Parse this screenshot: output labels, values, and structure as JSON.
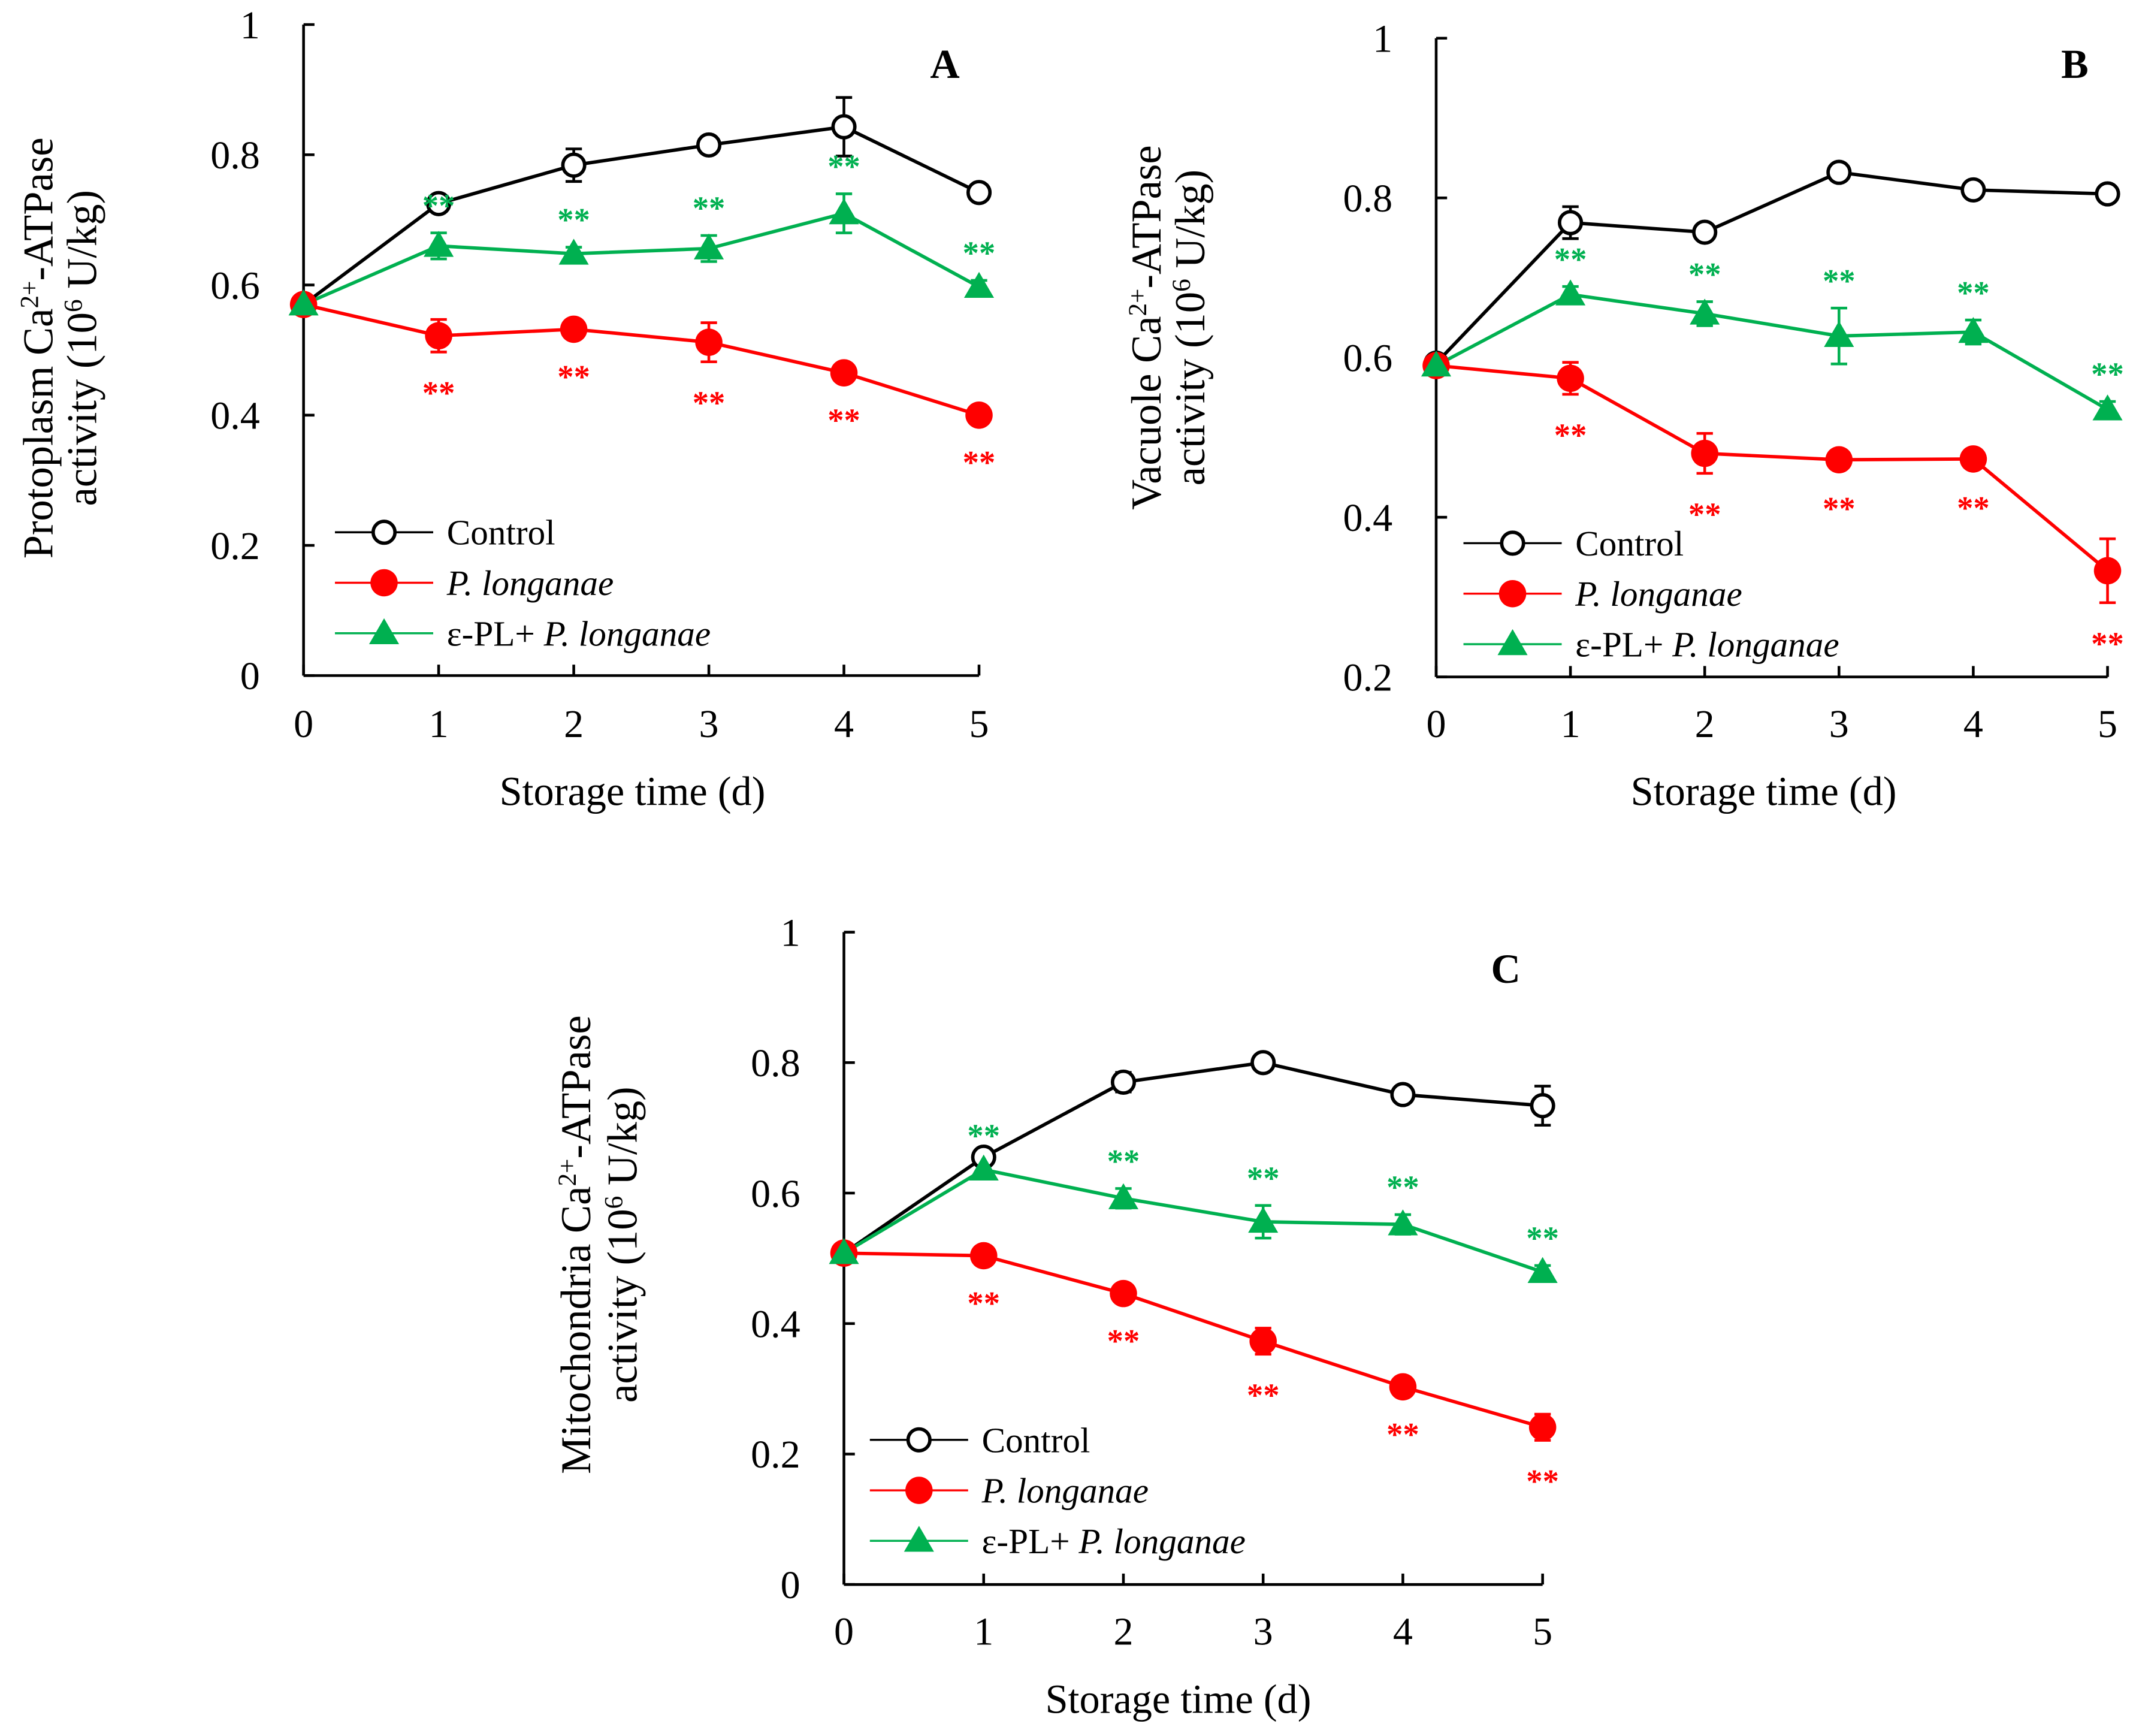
{
  "colors": {
    "Control": "#000000",
    "P. longanae": "#ff0000",
    "e-PL": "#00b050"
  },
  "legend": [
    {
      "pre": "",
      "ital": "",
      "label": "Control"
    },
    {
      "pre": "",
      "ital": "P. longanae"
    },
    {
      "pre": "ε-PL+ ",
      "ital": "P. longanae"
    }
  ],
  "chart_data": [
    {
      "type": "line",
      "panel": "A",
      "xlabel": "Storage time (d)",
      "ylabel": [
        "Protoplasm Ca",
        "2+",
        "-ATPase",
        "activity (10",
        "6",
        " U/kg)"
      ],
      "x": [
        0,
        1,
        2,
        3,
        4,
        5
      ],
      "ylim": [
        0,
        1
      ],
      "yticks": [
        "0",
        "0.2",
        "0.4",
        "0.6",
        "0.8",
        "1"
      ],
      "ytickvals": [
        0,
        0.2,
        0.4,
        0.6,
        0.8,
        1
      ],
      "series": [
        {
          "name": "Control",
          "marker": "open-circle",
          "values": [
            0.57,
            0.725,
            0.784,
            0.815,
            0.843,
            0.742
          ],
          "errors": [
            0.01,
            0.01,
            0.025,
            0.01,
            0.045,
            0.01
          ]
        },
        {
          "name": "P. longanae",
          "marker": "filled-circle",
          "values": [
            0.57,
            0.522,
            0.532,
            0.512,
            0.465,
            0.4
          ],
          "errors": [
            0.01,
            0.025,
            0.01,
            0.03,
            0.01,
            0.01
          ]
        },
        {
          "name": "ε-PL+ P. longanae",
          "marker": "triangle",
          "values": [
            0.57,
            0.66,
            0.648,
            0.656,
            0.71,
            0.597
          ],
          "errors": [
            0.01,
            0.02,
            0.01,
            0.02,
            0.03,
            0.01
          ]
        }
      ],
      "significance": {
        "P. longanae": [
          1,
          2,
          3,
          4,
          5
        ],
        "ε-PL+ P. longanae": [
          1,
          2,
          3,
          4,
          5
        ],
        "mark": "**"
      }
    },
    {
      "type": "line",
      "panel": "B",
      "xlabel": "Storage time (d)",
      "ylabel": [
        "Vacuole Ca",
        "2+",
        "-ATPase",
        "activity (10",
        "6",
        " U/kg)"
      ],
      "x": [
        0,
        1,
        2,
        3,
        4,
        5
      ],
      "ylim": [
        0.2,
        1
      ],
      "yticks": [
        "0.2",
        "0.4",
        "0.6",
        "0.8",
        "1"
      ],
      "ytickvals": [
        0.2,
        0.4,
        0.6,
        0.8,
        1
      ],
      "series": [
        {
          "name": "Control",
          "marker": "open-circle",
          "values": [
            0.593,
            0.769,
            0.757,
            0.832,
            0.81,
            0.805
          ],
          "errors": [
            0.01,
            0.02,
            0.01,
            0.01,
            0.01,
            0.01
          ]
        },
        {
          "name": "P. longanae",
          "marker": "filled-circle",
          "values": [
            0.59,
            0.574,
            0.48,
            0.472,
            0.473,
            0.333
          ],
          "errors": [
            0.01,
            0.02,
            0.025,
            0.01,
            0.01,
            0.04
          ]
        },
        {
          "name": "ε-PL+ P. longanae",
          "marker": "triangle",
          "values": [
            0.59,
            0.679,
            0.655,
            0.627,
            0.632,
            0.535
          ],
          "errors": [
            0.01,
            0.01,
            0.015,
            0.035,
            0.015,
            0.01
          ]
        }
      ],
      "significance": {
        "P. longanae": [
          1,
          2,
          3,
          4,
          5
        ],
        "ε-PL+ P. longanae": [
          1,
          2,
          3,
          4,
          5
        ],
        "mark": "**"
      }
    },
    {
      "type": "line",
      "panel": "C",
      "xlabel": "Storage time (d)",
      "ylabel": [
        "Mitochondria Ca",
        "2+",
        "-ATPase",
        "activity (10",
        "6",
        " U/kg)"
      ],
      "x": [
        0,
        1,
        2,
        3,
        4,
        5
      ],
      "ylim": [
        0,
        1
      ],
      "yticks": [
        "0",
        "0.2",
        "0.4",
        "0.6",
        "0.8",
        "1"
      ],
      "ytickvals": [
        0,
        0.2,
        0.4,
        0.6,
        0.8,
        1
      ],
      "series": [
        {
          "name": "Control",
          "marker": "open-circle",
          "values": [
            0.508,
            0.655,
            0.77,
            0.8,
            0.751,
            0.734
          ],
          "errors": [
            0.01,
            0.01,
            0.015,
            0.01,
            0.01,
            0.03
          ]
        },
        {
          "name": "P. longanae",
          "marker": "filled-circle",
          "values": [
            0.508,
            0.504,
            0.446,
            0.373,
            0.303,
            0.241
          ],
          "errors": [
            0.01,
            0.01,
            0.01,
            0.02,
            0.01,
            0.02
          ]
        },
        {
          "name": "ε-PL+ P. longanae",
          "marker": "triangle",
          "values": [
            0.508,
            0.636,
            0.592,
            0.556,
            0.552,
            0.479
          ],
          "errors": [
            0.01,
            0.01,
            0.015,
            0.025,
            0.015,
            0.01
          ]
        }
      ],
      "significance": {
        "P. longanae": [
          1,
          2,
          3,
          4,
          5
        ],
        "ε-PL+ P. longanae": [
          1,
          2,
          3,
          4,
          5
        ],
        "mark": "**"
      }
    }
  ]
}
